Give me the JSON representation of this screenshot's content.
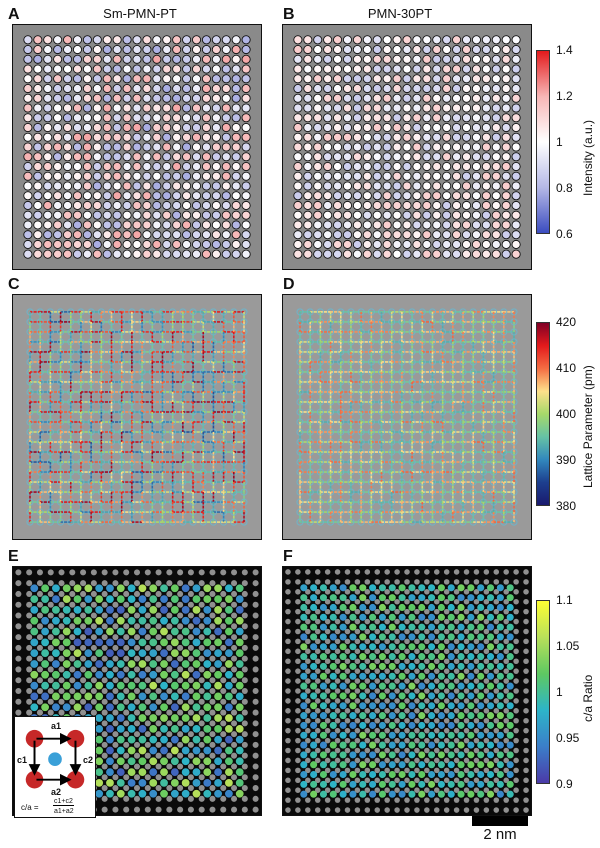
{
  "figure": {
    "labels": {
      "A": "A",
      "B": "B",
      "C": "C",
      "D": "D",
      "E": "E",
      "F": "F"
    },
    "titles": {
      "left": "Sm-PMN-PT",
      "right": "PMN-30PT"
    },
    "colorbars": {
      "intensity": {
        "title": "Intensity (a.u.)",
        "ticks": [
          "1.4",
          "1.2",
          "1",
          "0.8",
          "0.6"
        ],
        "colors": [
          "#e31a1c",
          "#f7b6b6",
          "#ffffff",
          "#b5b8e6",
          "#3b4cc0"
        ]
      },
      "lattice": {
        "title": "Lattice Parameter (pm)",
        "ticks": [
          "420",
          "410",
          "400",
          "390",
          "380"
        ],
        "colors": [
          "#800026",
          "#e31a1c",
          "#f46d43",
          "#fee08b",
          "#a6d96a",
          "#66c2a5",
          "#3288bd",
          "#1d3f8f",
          "#1a1a6e"
        ]
      },
      "ca": {
        "title": "c/a Ratio",
        "ticks": [
          "1.1",
          "1.05",
          "1",
          "0.95",
          "0.9"
        ],
        "colors": [
          "#ffff33",
          "#b8e05a",
          "#5ec962",
          "#2db4c8",
          "#3b7ec9",
          "#4b3aa8"
        ]
      }
    },
    "inset": {
      "a1": "a1",
      "a2": "a2",
      "c1": "c1",
      "c2": "c2",
      "formula_lhs": "c/a =",
      "formula_num": "c1+c2",
      "formula_den": "a1+a2"
    },
    "scalebar": {
      "label": "2 nm"
    }
  }
}
